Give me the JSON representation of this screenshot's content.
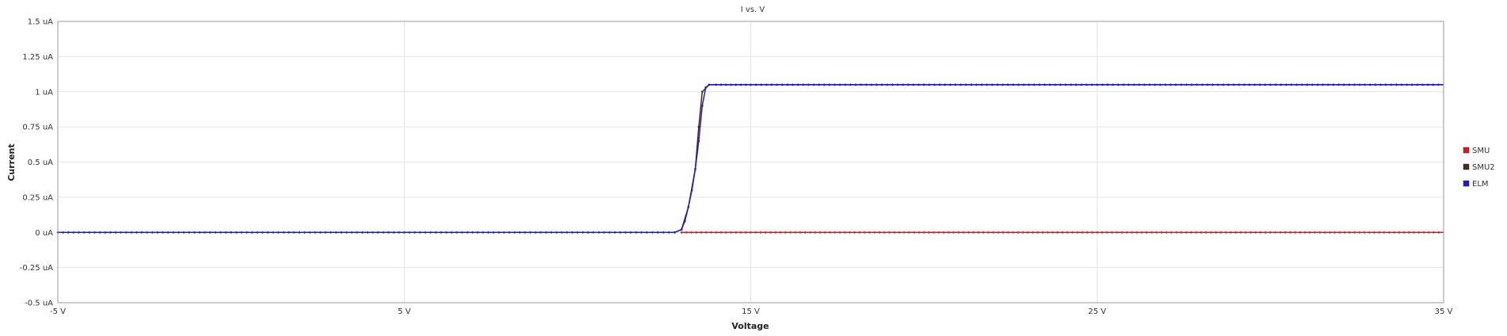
{
  "chart_data": {
    "type": "line",
    "title": "I vs. V",
    "xlabel": "Voltage",
    "ylabel": "Current",
    "xlim": [
      -5,
      35
    ],
    "ylim": [
      -0.5,
      1.5
    ],
    "x_ticks": [
      {
        "value": -5,
        "label": "-5 V"
      },
      {
        "value": 5,
        "label": "5 V"
      },
      {
        "value": 15,
        "label": "15 V"
      },
      {
        "value": 25,
        "label": "25 V"
      },
      {
        "value": 35,
        "label": "35 V"
      }
    ],
    "y_ticks": [
      {
        "value": 1.5,
        "label": "1.5 uA"
      },
      {
        "value": 1.25,
        "label": "1.25 uA"
      },
      {
        "value": 1.0,
        "label": "1 uA"
      },
      {
        "value": 0.75,
        "label": "0.75 uA"
      },
      {
        "value": 0.5,
        "label": "0.5 uA"
      },
      {
        "value": 0.25,
        "label": "0.25 uA"
      },
      {
        "value": 0.0,
        "label": "0 uA"
      },
      {
        "value": -0.25,
        "label": "-0.25 uA"
      },
      {
        "value": -0.5,
        "label": "-0.5 uA"
      }
    ],
    "grid": true,
    "legend_position": "right",
    "series": [
      {
        "name": "SMU",
        "color": "#d21c1c",
        "x": [
          13.0,
          14.0,
          15.0,
          16.0,
          17.0,
          18.0,
          19.0,
          20.0,
          21.0,
          22.0,
          23.0,
          24.0,
          25.0,
          26.0,
          27.0,
          28.0,
          29.0,
          30.0,
          31.0,
          32.0,
          33.0,
          34.0,
          35.0
        ],
        "y": [
          0,
          0,
          0,
          0,
          0,
          0,
          0,
          0,
          0,
          0,
          0,
          0,
          0,
          0,
          0,
          0,
          0,
          0,
          0,
          0,
          0,
          0,
          0
        ]
      },
      {
        "name": "SMU2",
        "color": "#4a2a14",
        "x": [
          12.8,
          13.0,
          13.2,
          13.4,
          13.5,
          13.6,
          13.8,
          14.0,
          15.0,
          20.0,
          25.0,
          30.0,
          35.0
        ],
        "y": [
          0,
          0.02,
          0.18,
          0.45,
          0.75,
          1.0,
          1.05,
          1.05,
          1.05,
          1.05,
          1.05,
          1.05,
          1.05
        ]
      },
      {
        "name": "ELM",
        "color": "#1c1cc8",
        "x": [
          -5.0,
          0.0,
          5.0,
          10.0,
          12.0,
          12.8,
          13.0,
          13.1,
          13.2,
          13.3,
          13.4,
          13.5,
          13.6,
          13.7,
          13.8,
          14.0,
          15.0,
          20.0,
          25.0,
          30.0,
          35.0
        ],
        "y": [
          0,
          0,
          0,
          0,
          0,
          0,
          0.02,
          0.08,
          0.18,
          0.3,
          0.45,
          0.65,
          0.9,
          1.03,
          1.05,
          1.05,
          1.05,
          1.05,
          1.05,
          1.05,
          1.05
        ]
      }
    ]
  }
}
